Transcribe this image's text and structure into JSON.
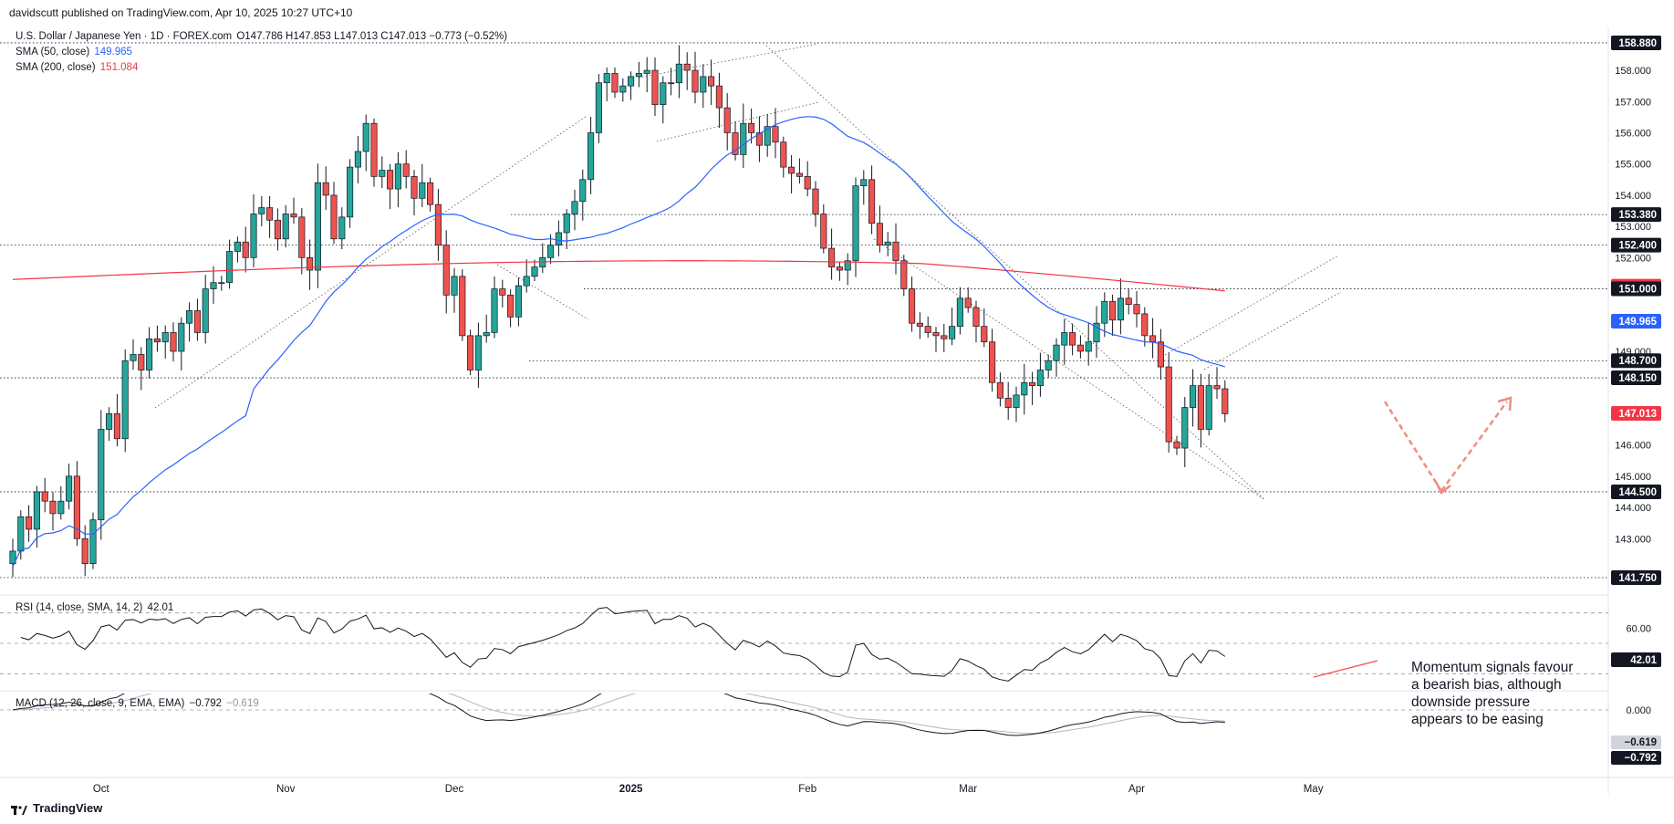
{
  "header": {
    "published": "davidscutt published on TradingView.com, Apr 10, 2025 10:27 UTC+10"
  },
  "legend": {
    "symbol": "U.S. Dollar / Japanese Yen · 1D · FOREX.com",
    "ohlc": "O147.786 H147.853 L147.013 C147.013 −0.773 (−0.52%)",
    "sma50_label": "SMA (50, close)",
    "sma50_value": "149.965",
    "sma200_label": "SMA (200, close)",
    "sma200_value": "151.084",
    "rsi_label": "RSI (14, close, SMA, 14, 2)",
    "rsi_value": "42.01",
    "macd_label": "MACD (12, 26, close, 9, EMA, EMA)",
    "macd_value": "−0.792",
    "signal_value": "−0.619"
  },
  "annotation": {
    "line1": "Momentum signals favour",
    "line2": "a bearish bias, although",
    "line3": "downside pressure",
    "line4": "appears to be easing"
  },
  "brand": {
    "name": "TradingView"
  },
  "colors": {
    "up": "#26a69a",
    "down": "#ef5350",
    "sma50": "#2962ff",
    "sma200": "#f23645",
    "arrow": "#f28b82"
  },
  "chart_data": {
    "type": "candlestick",
    "title": "U.S. Dollar / Japanese Yen · 1D · FOREX.com",
    "ylim": [
      141.4,
      159.2
    ],
    "price_ticks": [
      "143.000",
      "144.000",
      "145.000",
      "146.000",
      "147.000",
      "149.000",
      "152.000",
      "153.000",
      "154.000",
      "155.000",
      "156.000",
      "157.000",
      "158.000"
    ],
    "x_ticks": [
      {
        "label": "Oct",
        "i": 11
      },
      {
        "label": "Nov",
        "i": 34
      },
      {
        "label": "Dec",
        "i": 55
      },
      {
        "label": "2025",
        "i": 77
      },
      {
        "label": "Feb",
        "i": 99
      },
      {
        "label": "Mar",
        "i": 119
      },
      {
        "label": "Apr",
        "i": 140
      },
      {
        "label": "May",
        "i": 162
      }
    ],
    "closes": [
      142.6,
      143.7,
      143.3,
      144.5,
      144.2,
      143.8,
      144.2,
      145.0,
      143.0,
      142.2,
      143.6,
      146.5,
      147.0,
      146.2,
      148.7,
      148.9,
      148.4,
      149.4,
      149.3,
      149.6,
      149.0,
      149.9,
      150.3,
      149.6,
      151.0,
      151.2,
      151.2,
      152.2,
      152.5,
      152.0,
      153.4,
      153.6,
      153.2,
      152.6,
      153.4,
      153.3,
      152.0,
      151.6,
      154.4,
      154.0,
      152.6,
      153.3,
      154.9,
      155.4,
      156.3,
      154.6,
      154.8,
      154.2,
      155.0,
      154.6,
      153.9,
      154.4,
      153.7,
      152.4,
      150.8,
      151.4,
      149.5,
      148.4,
      149.5,
      149.6,
      151.0,
      150.8,
      150.1,
      151.1,
      151.4,
      151.7,
      152.0,
      152.4,
      152.8,
      153.4,
      153.8,
      154.5,
      156.0,
      157.6,
      157.9,
      157.3,
      157.5,
      157.8,
      157.9,
      158.0,
      156.9,
      157.6,
      157.6,
      158.2,
      158.0,
      157.3,
      157.8,
      157.5,
      156.8,
      156.0,
      155.3,
      156.3,
      156.0,
      155.6,
      156.2,
      155.7,
      154.9,
      154.7,
      154.6,
      154.2,
      153.4,
      152.3,
      151.7,
      151.6,
      151.9,
      154.3,
      154.5,
      153.1,
      152.4,
      152.5,
      151.9,
      151.0,
      149.9,
      149.8,
      149.6,
      149.5,
      149.4,
      149.8,
      150.7,
      150.4,
      149.8,
      149.3,
      148.0,
      147.5,
      147.2,
      147.6,
      148.0,
      147.9,
      148.4,
      148.7,
      149.2,
      149.6,
      149.2,
      149.0,
      149.3,
      149.9,
      150.6,
      150.0,
      150.7,
      150.5,
      150.2,
      149.5,
      149.3,
      148.5,
      146.1,
      145.9,
      147.2,
      147.9,
      146.5,
      147.9,
      147.8,
      147.0
    ],
    "price_labels": [
      {
        "value": "158.880",
        "y": 158.88,
        "bg": "#131722"
      },
      {
        "value": "153.380",
        "y": 153.38,
        "bg": "#131722"
      },
      {
        "value": "152.400",
        "y": 152.4,
        "bg": "#131722"
      },
      {
        "value": "151.084",
        "y": 151.084,
        "bg": "#f23645"
      },
      {
        "value": "151.000",
        "y": 151.0,
        "bg": "#131722"
      },
      {
        "value": "149.965",
        "y": 149.965,
        "bg": "#2962ff"
      },
      {
        "value": "148.700",
        "y": 148.7,
        "bg": "#131722"
      },
      {
        "value": "148.150",
        "y": 148.15,
        "bg": "#131722"
      },
      {
        "value": "147.013",
        "y": 147.013,
        "bg": "#f23645"
      },
      {
        "value": "144.500",
        "y": 144.5,
        "bg": "#131722"
      },
      {
        "value": "141.750",
        "y": 141.75,
        "bg": "#131722"
      }
    ],
    "horizontal_levels": [
      158.88,
      153.38,
      152.4,
      151.0,
      148.7,
      148.15,
      144.5,
      141.75
    ],
    "rsi": {
      "ticks": [
        "60.00"
      ],
      "last": "42.01"
    },
    "macd": {
      "ticks": [
        "0.000"
      ],
      "macd_last": "−0.792",
      "signal_last": "−0.619"
    }
  }
}
